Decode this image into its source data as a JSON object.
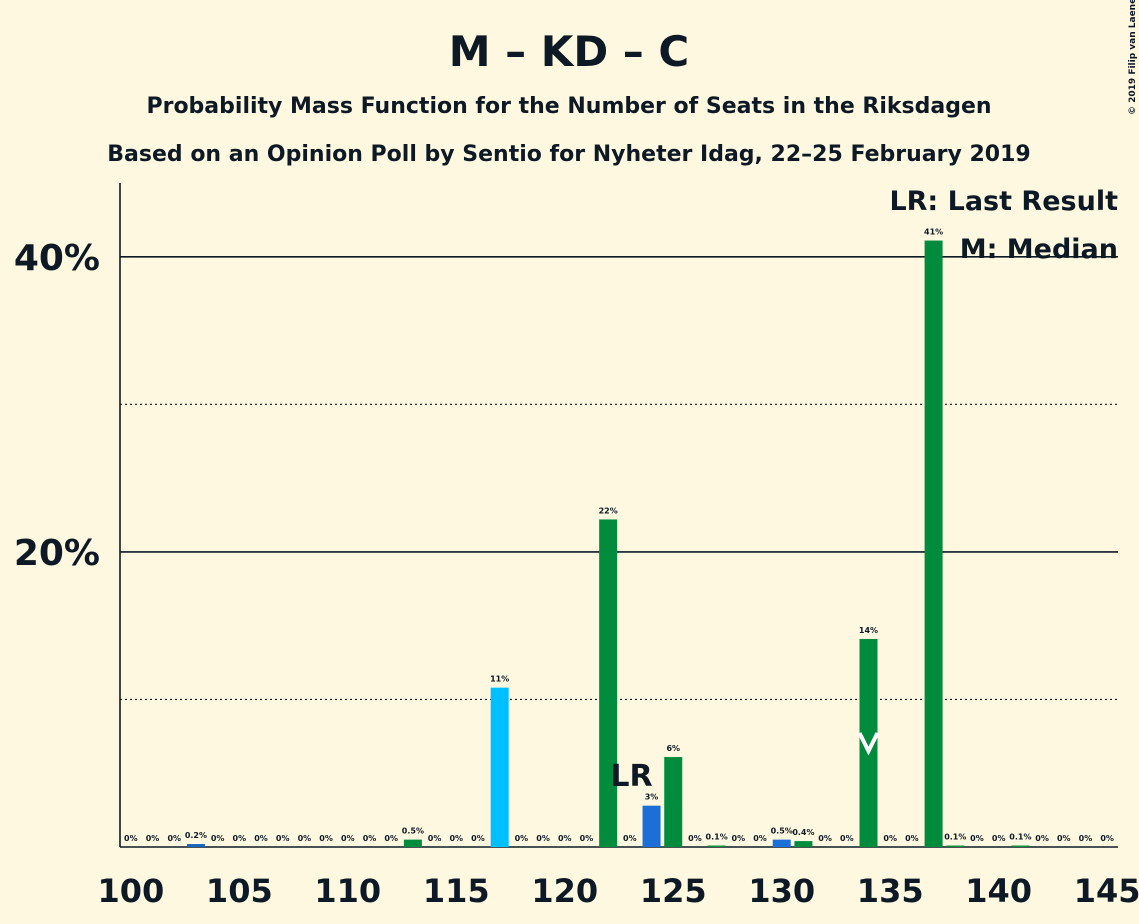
{
  "chart_data": {
    "type": "bar",
    "title": "M – KD – C",
    "subtitle": "Probability Mass Function for the Number of Seats in the Riksdagen",
    "subtitle2": "Based on an Opinion Poll by Sentio for Nyheter Idag, 22–25 February 2019",
    "copyright": "© 2019 Filip van Laenen",
    "x": [
      100,
      101,
      102,
      103,
      104,
      105,
      106,
      107,
      108,
      109,
      110,
      111,
      112,
      113,
      114,
      115,
      116,
      117,
      118,
      119,
      120,
      121,
      122,
      123,
      124,
      125,
      126,
      127,
      128,
      129,
      130,
      131,
      132,
      133,
      134,
      135,
      136,
      137,
      138,
      139,
      140,
      141,
      142,
      143,
      144,
      145
    ],
    "values": [
      0,
      0,
      0,
      0.2,
      0,
      0,
      0,
      0,
      0,
      0,
      0,
      0,
      0,
      0.5,
      0,
      0,
      0,
      10.8,
      0,
      0,
      0,
      0,
      22.2,
      0,
      2.8,
      6.1,
      0,
      0.1,
      0,
      0,
      0.5,
      0.4,
      0,
      0,
      14.1,
      0,
      0,
      41.1,
      0.1,
      0,
      0,
      0.1,
      0,
      0,
      0,
      0
    ],
    "value_labels": [
      "0%",
      "0%",
      "0%",
      "0.2%",
      "0%",
      "0%",
      "0%",
      "0%",
      "0%",
      "0%",
      "0%",
      "0%",
      "0%",
      "0.5%",
      "0%",
      "0%",
      "0%",
      "11%",
      "0%",
      "0%",
      "0%",
      "0%",
      "22%",
      "0%",
      "3%",
      "6%",
      "0%",
      "0.1%",
      "0%",
      "0%",
      "0.5%",
      "0.4%",
      "0%",
      "0%",
      "14%",
      "0%",
      "0%",
      "41%",
      "0.1%",
      "0%",
      "0%",
      "0.1%",
      "0%",
      "0%",
      "0%",
      "0%"
    ],
    "colors": [
      "#008c3c",
      "#008c3c",
      "#008c3c",
      "#1565c0",
      "#008c3c",
      "#008c3c",
      "#008c3c",
      "#008c3c",
      "#008c3c",
      "#008c3c",
      "#008c3c",
      "#008c3c",
      "#008c3c",
      "#008c3c",
      "#008c3c",
      "#008c3c",
      "#008c3c",
      "#00bfff",
      "#008c3c",
      "#008c3c",
      "#008c3c",
      "#008c3c",
      "#008c3c",
      "#008c3c",
      "#1a6fd8",
      "#008c3c",
      "#008c3c",
      "#008c3c",
      "#008c3c",
      "#008c3c",
      "#1a6fd8",
      "#008c3c",
      "#008c3c",
      "#008c3c",
      "#008c3c",
      "#008c3c",
      "#008c3c",
      "#008c3c",
      "#008c3c",
      "#008c3c",
      "#008c3c",
      "#008c3c",
      "#008c3c",
      "#008c3c",
      "#008c3c",
      "#008c3c"
    ],
    "xlim": [
      99.5,
      145.5
    ],
    "xticks": [
      100,
      105,
      110,
      115,
      120,
      125,
      130,
      135,
      140,
      145
    ],
    "ylim": [
      0,
      45
    ],
    "yticks": [
      {
        "value": 20,
        "label": "20%"
      },
      {
        "value": 40,
        "label": "40%"
      }
    ],
    "minor_yticks": [
      10,
      30
    ],
    "last_result": 124,
    "last_result_label": "LR",
    "median": 134,
    "legend": [
      "LR: Last Result",
      "M: Median"
    ]
  }
}
